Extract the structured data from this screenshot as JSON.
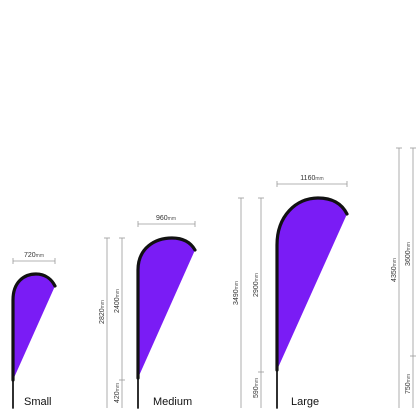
{
  "colors": {
    "flag": "#7a1cf5",
    "outline": "#111111",
    "dimension_line": "#9a9a9a"
  },
  "unit": "mm",
  "flags": [
    {
      "size": "Small",
      "width": {
        "value": "720",
        "unit": "mm"
      },
      "heights": []
    },
    {
      "size": "Medium",
      "width": {
        "value": "960",
        "unit": "mm"
      },
      "heights": [
        {
          "value": "2820",
          "unit": "mm"
        },
        {
          "value": "2400",
          "unit": "mm"
        },
        {
          "value": "420",
          "unit": "mm"
        }
      ]
    },
    {
      "size": "Large",
      "width": {
        "value": "1160",
        "unit": "mm"
      },
      "heights": [
        {
          "value": "3490",
          "unit": "mm"
        },
        {
          "value": "2900",
          "unit": "mm"
        },
        {
          "value": "590",
          "unit": "mm"
        }
      ]
    },
    {
      "size": "",
      "width": null,
      "heights": [
        {
          "value": "4350",
          "unit": "mm"
        },
        {
          "value": "3600",
          "unit": "mm"
        },
        {
          "value": "750",
          "unit": "mm"
        }
      ]
    }
  ]
}
